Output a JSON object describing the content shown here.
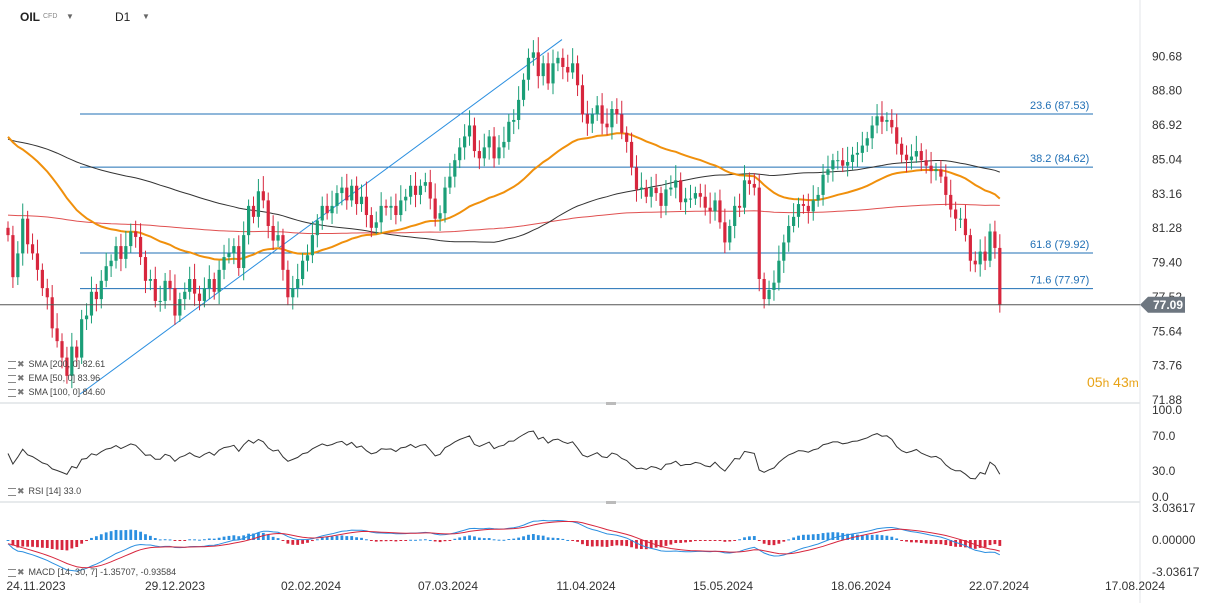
{
  "header": {
    "symbol": "OIL",
    "symbol_suffix": "CFD",
    "timeframe": "D1"
  },
  "countdown": {
    "hours": "05",
    "h_unit": "h",
    "minutes": "43",
    "m_unit": "m"
  },
  "chart_data": {
    "type": "candlestick",
    "panels": [
      {
        "id": "price",
        "y_ticks": [
          "90.68",
          "88.80",
          "86.92",
          "85.04",
          "83.16",
          "81.28",
          "79.40",
          "77.52",
          "75.64",
          "73.76",
          "71.88"
        ],
        "ylim": [
          71.88,
          92.56
        ],
        "current_price": "77.09",
        "fib_levels": [
          {
            "label": "23.6 (87.53)",
            "value": 87.53
          },
          {
            "label": "38.2 (84.62)",
            "value": 84.62
          },
          {
            "label": "61.8 (79.92)",
            "value": 79.92
          },
          {
            "label": "71.6 (77.97)",
            "value": 77.97
          }
        ],
        "fib_trend": {
          "from": {
            "date": "24.11.2023",
            "value": 72.2
          },
          "to": {
            "date": "10.04.2024",
            "value": 91.6
          }
        },
        "indicators": [
          {
            "label": "SMA [200, 0]",
            "value": "82.61",
            "color": "#e05050"
          },
          {
            "label": "EMA [50, 0]",
            "value": "83.96",
            "color": "#f0900c"
          },
          {
            "label": "SMA [100, 0]",
            "value": "84.60",
            "color": "#333333"
          }
        ],
        "close_series": [
          80.9,
          78.6,
          79.9,
          81.8,
          80.4,
          79.9,
          79.0,
          78.0,
          77.5,
          75.8,
          75.1,
          74.2,
          73.2,
          74.8,
          74.2,
          76.3,
          76.5,
          77.8,
          77.4,
          78.4,
          79.2,
          79.5,
          80.3,
          79.6,
          80.3,
          81.1,
          80.8,
          79.7,
          78.4,
          78.5,
          77.3,
          77.3,
          78.4,
          78.0,
          76.5,
          77.4,
          77.8,
          78.5,
          77.7,
          77.3,
          78.0,
          78.5,
          77.8,
          79.0,
          79.7,
          79.9,
          80.3,
          79.1,
          80.9,
          82.5,
          81.9,
          83.3,
          82.8,
          81.4,
          80.6,
          80.9,
          79.0,
          77.5,
          78.0,
          78.5,
          79.5,
          79.8,
          80.9,
          81.7,
          82.5,
          82.1,
          82.5,
          83.2,
          83.5,
          82.8,
          83.6,
          82.6,
          83.0,
          82.0,
          81.3,
          81.6,
          82.5,
          82.4,
          82.5,
          82.0,
          82.8,
          83.0,
          83.6,
          83.1,
          83.6,
          83.8,
          82.9,
          81.8,
          82.1,
          83.5,
          84.1,
          85.0,
          85.7,
          86.3,
          86.9,
          85.5,
          85.1,
          85.7,
          86.3,
          85.1,
          85.7,
          86.0,
          87.1,
          87.2,
          88.3,
          89.4,
          90.6,
          90.9,
          89.6,
          90.3,
          89.2,
          90.3,
          90.6,
          90.1,
          89.8,
          90.3,
          89.1,
          87.5,
          87.0,
          87.5,
          88.0,
          87.0,
          86.8,
          87.8,
          87.5,
          86.5,
          86.0,
          84.6,
          83.4,
          83.5,
          83.0,
          83.5,
          83.2,
          82.5,
          83.4,
          83.5,
          83.9,
          82.7,
          82.9,
          82.9,
          83.2,
          83.0,
          82.4,
          82.2,
          82.8,
          81.6,
          80.5,
          81.4,
          82.5,
          82.4,
          83.9,
          83.7,
          83.5,
          78.5,
          77.4,
          77.9,
          78.3,
          79.5,
          80.5,
          81.4,
          81.9,
          82.6,
          82.5,
          82.2,
          82.8,
          83.1,
          84.2,
          84.5,
          85.0,
          85.0,
          84.7,
          84.9,
          85.3,
          85.4,
          85.8,
          86.2,
          86.9,
          87.4,
          87.1,
          87.2,
          86.8,
          85.9,
          85.3,
          85.0,
          85.2,
          85.5,
          85.0,
          84.7,
          84.4,
          84.5,
          84.1,
          83.1,
          82.3,
          81.8,
          81.8,
          80.9,
          79.5,
          79.3,
          80.0,
          79.5,
          81.1,
          80.2,
          77.09
        ]
      },
      {
        "id": "rsi",
        "y_ticks": [
          "100.0",
          "70.0",
          "30.0",
          "0.0"
        ],
        "ylim": [
          0,
          100
        ],
        "indicator": {
          "label": "RSI [14]",
          "value": "33.0"
        }
      },
      {
        "id": "macd",
        "y_ticks": [
          "3.03617",
          "0.00000",
          "-3.03617"
        ],
        "ylim": [
          -3.03617,
          3.03617
        ],
        "indicator": {
          "label": "MACD [14, 30, 7]",
          "value": "-1.35707,  -0.93584"
        }
      }
    ],
    "x_ticks": [
      "24.11.2023",
      "29.12.2023",
      "02.02.2024",
      "07.03.2024",
      "11.04.2024",
      "15.05.2024",
      "18.06.2024",
      "22.07.2024",
      "17.08.2024"
    ],
    "colors": {
      "up": "#1a9e77",
      "down": "#d7263d",
      "fib": "#1f6fb5",
      "trend": "#2b8fe0",
      "sma200": "#e05050",
      "ema50": "#f0900c",
      "sma100": "#333333",
      "rsi": "#333333",
      "macd": "#2b8fe0",
      "signal": "#d7263d",
      "price_tag": "#6d7680",
      "countdown": "#e8a317"
    }
  }
}
